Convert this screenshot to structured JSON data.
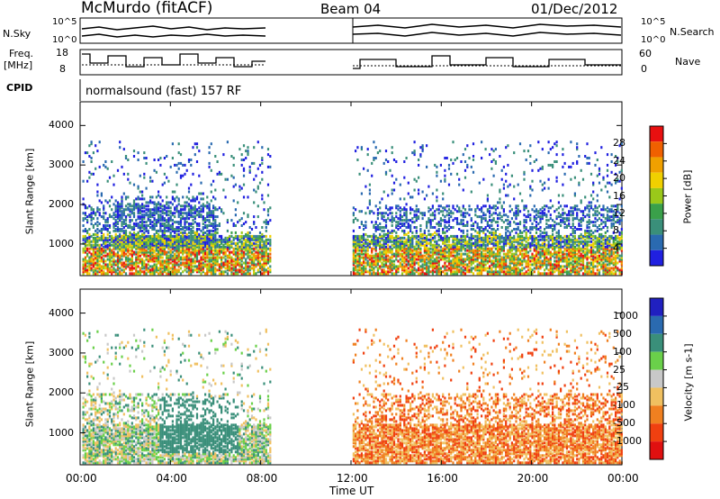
{
  "header": {
    "station": "McMurdo (fitACF)",
    "beam": "Beam 04",
    "date": "01/Dec/2012"
  },
  "side_labels": {
    "nsky": "N.Sky",
    "freq": "Freq.",
    "freq_unit": "[MHz]",
    "cpid": "CPID",
    "nsearch": "N.Search",
    "nave": "Nave"
  },
  "top_panels": {
    "noise_ticks_left": [
      "10^5",
      "10^0"
    ],
    "noise_ticks_right": [
      "10^5",
      "10^0"
    ],
    "freq_ticks_left": [
      "18",
      "8"
    ],
    "nave_ticks_right": [
      "60",
      "0"
    ],
    "cpid_text": "normalsound (fast) 157 RF"
  },
  "colors": {
    "power_scale": [
      "#2020e0",
      "#2a6ab0",
      "#3a8f7a",
      "#3aa04a",
      "#9ac81a",
      "#f0d000",
      "#f0a000",
      "#f06000",
      "#e81010"
    ],
    "velocity_scale": [
      "#2020c0",
      "#2a6ab0",
      "#3a8f7a",
      "#6ad04a",
      "#c8c8c8",
      "#f0c060",
      "#f08020",
      "#f04010",
      "#e01010"
    ]
  },
  "chart_data": [
    {
      "type": "heatmap",
      "title": "",
      "ylabel": "Slant Range [km]",
      "xlabel": "Time UT",
      "x_ticks": [
        "00:00",
        "04:00",
        "08:00",
        "12:00",
        "16:00",
        "20:00",
        "00:00"
      ],
      "y_ticks": [
        "1000",
        "2000",
        "3000",
        "4000"
      ],
      "ylim": [
        200,
        4600
      ],
      "xlim_hours": [
        0,
        24
      ],
      "data_gap_hours": [
        8.4,
        12.0
      ],
      "colorbar": {
        "label": "Power [dB]",
        "ticks": [
          "4",
          "8",
          "12",
          "16",
          "20",
          "24",
          "28"
        ],
        "range": [
          0,
          32
        ]
      }
    },
    {
      "type": "heatmap",
      "title": "",
      "ylabel": "Slant Range [km]",
      "xlabel": "Time UT",
      "x_ticks": [
        "00:00",
        "04:00",
        "08:00",
        "12:00",
        "16:00",
        "20:00",
        "00:00"
      ],
      "y_ticks": [
        "1000",
        "2000",
        "3000",
        "4000"
      ],
      "ylim": [
        200,
        4600
      ],
      "xlim_hours": [
        0,
        24
      ],
      "data_gap_hours": [
        8.4,
        12.0
      ],
      "colorbar": {
        "label": "Velocity [m s-1]",
        "ticks": [
          "1000",
          "500",
          "100",
          "25",
          "-25",
          "-100",
          "-500",
          "-1000"
        ]
      }
    }
  ]
}
